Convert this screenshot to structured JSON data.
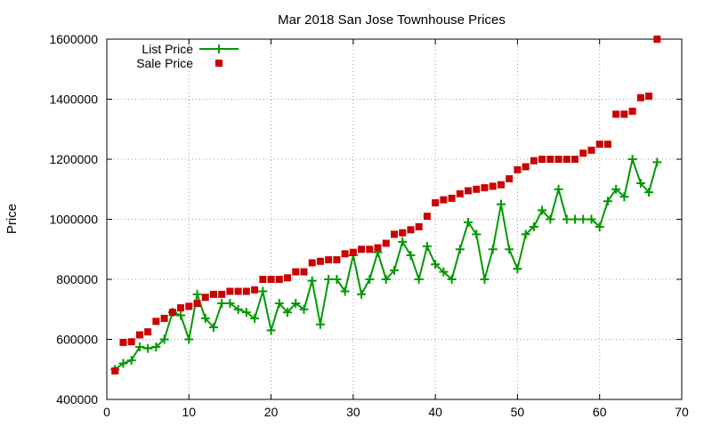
{
  "chart_data": {
    "type": "line",
    "title": "Mar 2018 San Jose Townhouse Prices",
    "xlabel": "",
    "ylabel": "Price",
    "xlim": [
      0,
      70
    ],
    "ylim": [
      400000,
      1600000
    ],
    "x_ticks": [
      0,
      10,
      20,
      30,
      40,
      50,
      60,
      70
    ],
    "y_ticks": [
      400000,
      600000,
      800000,
      1000000,
      1200000,
      1400000,
      1600000
    ],
    "grid": true,
    "legend_position": "top-left",
    "series": [
      {
        "name": "List Price",
        "style": "line+plus",
        "color": "#009900",
        "x": [
          1,
          2,
          3,
          4,
          5,
          6,
          7,
          8,
          9,
          10,
          11,
          12,
          13,
          14,
          15,
          16,
          17,
          18,
          19,
          20,
          21,
          22,
          23,
          24,
          25,
          26,
          27,
          28,
          29,
          30,
          31,
          32,
          33,
          34,
          35,
          36,
          37,
          38,
          39,
          40,
          41,
          42,
          43,
          44,
          45,
          46,
          47,
          48,
          49,
          50,
          51,
          52,
          53,
          54,
          55,
          56,
          57,
          58,
          59,
          60,
          61,
          62,
          63,
          64,
          65,
          66,
          67
        ],
        "values": [
          500000,
          520000,
          530000,
          575000,
          570000,
          575000,
          600000,
          690000,
          680000,
          600000,
          750000,
          670000,
          640000,
          720000,
          720000,
          700000,
          690000,
          670000,
          760000,
          630000,
          720000,
          690000,
          720000,
          700000,
          795000,
          650000,
          800000,
          800000,
          760000,
          880000,
          750000,
          800000,
          890000,
          800000,
          830000,
          925000,
          880000,
          800000,
          910000,
          850000,
          825000,
          800000,
          900000,
          990000,
          950000,
          800000,
          900000,
          1050000,
          900000,
          835000,
          950000,
          975000,
          1030000,
          1000000,
          1100000,
          1000000,
          1000000,
          1000000,
          1000000,
          975000,
          1060000,
          1100000,
          1075000,
          1200000,
          1120000,
          1090000,
          1190000
        ]
      },
      {
        "name": "Sale Price",
        "style": "square",
        "color": "#cc0000",
        "x": [
          1,
          2,
          3,
          4,
          5,
          6,
          7,
          8,
          9,
          10,
          11,
          12,
          13,
          14,
          15,
          16,
          17,
          18,
          19,
          20,
          21,
          22,
          23,
          24,
          25,
          26,
          27,
          28,
          29,
          30,
          31,
          32,
          33,
          34,
          35,
          36,
          37,
          38,
          39,
          40,
          41,
          42,
          43,
          44,
          45,
          46,
          47,
          48,
          49,
          50,
          51,
          52,
          53,
          54,
          55,
          56,
          57,
          58,
          59,
          60,
          61,
          62,
          63,
          64,
          65,
          66,
          67
        ],
        "values": [
          495000,
          590000,
          592000,
          615000,
          625000,
          660000,
          670000,
          690000,
          705000,
          710000,
          720000,
          740000,
          750000,
          750000,
          760000,
          760000,
          760000,
          765000,
          800000,
          800000,
          800000,
          805000,
          825000,
          825000,
          855000,
          860000,
          865000,
          865000,
          885000,
          890000,
          900000,
          900000,
          905000,
          920000,
          950000,
          955000,
          965000,
          975000,
          1010000,
          1055000,
          1065000,
          1070000,
          1085000,
          1095000,
          1100000,
          1105000,
          1110000,
          1115000,
          1135000,
          1165000,
          1175000,
          1195000,
          1200000,
          1200000,
          1200000,
          1200000,
          1200000,
          1220000,
          1230000,
          1250000,
          1250000,
          1350000,
          1350000,
          1360000,
          1405000,
          1410000,
          1600000
        ]
      }
    ]
  }
}
